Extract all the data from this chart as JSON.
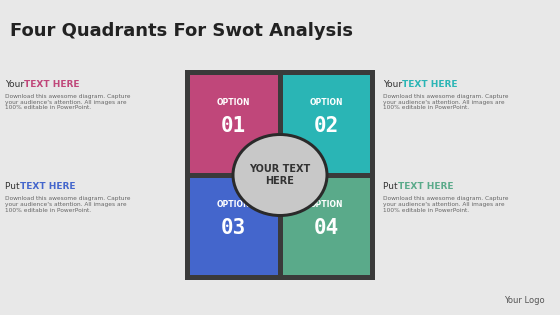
{
  "title": "Four Quadrants For Swot Analysis",
  "title_fontsize": 13,
  "bg_color": "#e8e8e8",
  "dark_border": "#3a3a3a",
  "quadrant_colors": [
    "#c0477a",
    "#2ab5b5",
    "#4466cc",
    "#5aaa8a"
  ],
  "quadrant_labels": [
    "OPTION\n01",
    "OPTION\n02",
    "OPTION\n03",
    "OPTION\n04"
  ],
  "center_text": "YOUR TEXT\nHERE",
  "center_ellipse_color": "#c8c8c8",
  "center_ellipse_border": "#2a2a2a",
  "side_labels_left": [
    {
      "prefix": "Your ",
      "highlight": "TEXT HERE",
      "color": "#c0477a"
    },
    {
      "prefix": "Put ",
      "highlight": "TEXT HERE",
      "color": "#4466cc"
    }
  ],
  "side_labels_right": [
    {
      "prefix": "Your ",
      "highlight": "TEXT HERE",
      "color": "#2ab5b5"
    },
    {
      "prefix": "Put ",
      "highlight": "TEXT HERE",
      "color": "#5aaa8a"
    }
  ],
  "side_body": "Download this awesome diagram. Capture\nyour audience's attention. All images are\n100% editable in PowerPoint.",
  "logo_text": "Your Logo",
  "white": "#ffffff",
  "dark_text": "#444444",
  "light_text": "#888888"
}
